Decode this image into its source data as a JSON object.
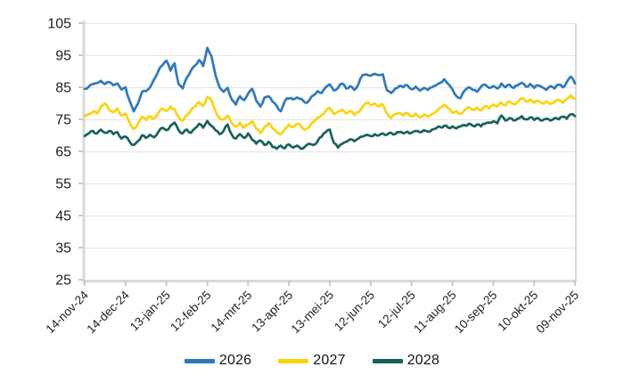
{
  "chart_data": {
    "type": "line",
    "title": "",
    "xlabel": "",
    "ylabel": "",
    "ylim": [
      25,
      105
    ],
    "y_ticks": [
      25,
      35,
      45,
      55,
      65,
      75,
      85,
      95,
      105
    ],
    "x_tick_labels": [
      "14-nov-24",
      "14-dec-24",
      "13-jan-25",
      "12-feb-25",
      "14-mrt-25",
      "13-apr-25",
      "13-mei-25",
      "12-jun-25",
      "12-jul-25",
      "11-aug-25",
      "10-sep-25",
      "10-okt-25",
      "09-nov-25"
    ],
    "x_total_days": 360,
    "sample_interval_days": 3,
    "grid": "horizontal",
    "legend_position": "bottom",
    "axis_color": "#D9D9D9",
    "gridline_color": "#E4E4E4",
    "tick_color": "#C9C9C9",
    "label_color": "#1f1f1f",
    "render_noise": 0.4,
    "series": [
      {
        "name": "2026",
        "color": "#2E79BC",
        "values": [
          84.5,
          85.2,
          86.0,
          86.3,
          87.0,
          86.0,
          86.6,
          85.6,
          86.2,
          84.3,
          85.0,
          80.8,
          77.5,
          79.8,
          83.5,
          83.8,
          85.0,
          87.5,
          90.0,
          91.8,
          93.3,
          90.2,
          92.5,
          86.0,
          84.6,
          88.0,
          90.2,
          91.8,
          93.5,
          91.6,
          97.3,
          94.8,
          88.8,
          85.0,
          83.6,
          84.8,
          81.2,
          79.6,
          82.2,
          81.0,
          83.0,
          84.5,
          80.8,
          79.0,
          81.8,
          82.2,
          80.5,
          79.2,
          77.5,
          80.8,
          81.5,
          81.2,
          81.8,
          81.4,
          80.2,
          81.0,
          82.5,
          83.8,
          83.2,
          85.0,
          85.9,
          84.0,
          84.8,
          86.2,
          84.6,
          85.4,
          84.2,
          86.0,
          88.8,
          89.0,
          88.6,
          89.2,
          88.8,
          89.0,
          84.0,
          83.2,
          84.6,
          85.4,
          85.0,
          85.6,
          84.4,
          85.2,
          84.0,
          84.8,
          84.2,
          85.0,
          85.6,
          86.4,
          87.5,
          86.0,
          84.4,
          82.2,
          81.6,
          84.0,
          85.0,
          84.2,
          83.6,
          85.2,
          85.8,
          84.8,
          85.4,
          84.6,
          86.2,
          85.0,
          85.8,
          84.8,
          85.6,
          86.4,
          85.2,
          86.0,
          84.8,
          85.6,
          85.0,
          84.2,
          85.4,
          84.6,
          85.8,
          85.0,
          86.6,
          88.3,
          86.2
        ]
      },
      {
        "name": "2027",
        "color": "#FCD20C",
        "values": [
          76.0,
          76.6,
          77.4,
          76.8,
          79.0,
          80.0,
          78.0,
          77.2,
          78.4,
          76.2,
          76.8,
          74.0,
          72.0,
          73.5,
          75.8,
          74.8,
          76.0,
          75.4,
          77.0,
          78.4,
          77.6,
          79.0,
          78.2,
          75.8,
          74.6,
          76.4,
          77.8,
          79.0,
          80.4,
          79.2,
          82.0,
          81.0,
          77.6,
          75.4,
          75.0,
          76.2,
          73.8,
          72.6,
          74.0,
          72.4,
          73.4,
          74.4,
          72.0,
          70.8,
          72.6,
          73.8,
          72.2,
          71.0,
          70.4,
          72.0,
          73.4,
          72.6,
          73.6,
          72.8,
          71.8,
          72.6,
          74.2,
          75.6,
          76.4,
          77.6,
          78.5,
          76.6,
          77.4,
          78.0,
          76.8,
          77.6,
          76.4,
          77.2,
          79.0,
          80.2,
          79.4,
          80.0,
          79.0,
          79.6,
          76.8,
          75.4,
          76.6,
          77.0,
          76.2,
          77.0,
          76.0,
          76.8,
          75.6,
          76.4,
          75.8,
          76.6,
          77.4,
          78.6,
          79.5,
          78.4,
          77.0,
          77.6,
          76.8,
          78.0,
          78.8,
          78.0,
          78.6,
          77.8,
          79.2,
          78.4,
          79.6,
          79.0,
          80.2,
          79.4,
          80.6,
          79.8,
          80.4,
          81.6,
          80.6,
          81.2,
          80.2,
          80.8,
          80.0,
          80.6,
          79.8,
          80.4,
          81.0,
          80.2,
          81.4,
          82.5,
          81.4
        ]
      },
      {
        "name": "2028",
        "color": "#17635A",
        "values": [
          69.8,
          70.6,
          71.4,
          70.6,
          71.8,
          70.8,
          71.4,
          70.4,
          71.0,
          69.0,
          69.6,
          68.0,
          67.0,
          68.2,
          70.0,
          69.2,
          70.2,
          69.4,
          71.0,
          72.4,
          71.6,
          73.0,
          74.0,
          71.6,
          70.6,
          71.8,
          70.8,
          72.2,
          73.6,
          72.4,
          74.5,
          73.0,
          71.6,
          70.4,
          71.4,
          73.4,
          70.2,
          69.0,
          70.4,
          69.2,
          70.6,
          68.6,
          67.4,
          68.4,
          67.0,
          68.0,
          66.4,
          65.8,
          66.8,
          66.0,
          67.2,
          66.2,
          66.8,
          65.8,
          66.6,
          67.4,
          67.0,
          68.2,
          69.6,
          71.0,
          71.8,
          67.6,
          66.2,
          67.4,
          68.0,
          68.8,
          68.2,
          69.0,
          69.6,
          70.2,
          69.8,
          70.4,
          70.0,
          70.6,
          70.2,
          70.8,
          70.4,
          71.0,
          70.6,
          71.2,
          70.8,
          71.4,
          71.0,
          71.6,
          71.2,
          71.8,
          72.2,
          72.6,
          73.0,
          72.4,
          72.8,
          72.2,
          72.8,
          73.2,
          73.6,
          73.0,
          73.4,
          72.8,
          73.6,
          74.0,
          74.4,
          73.8,
          76.2,
          74.6,
          75.4,
          74.6,
          75.2,
          76.0,
          75.0,
          75.6,
          74.8,
          75.4,
          74.6,
          75.2,
          74.6,
          75.4,
          75.0,
          75.8,
          75.2,
          76.6,
          76.0
        ]
      }
    ]
  }
}
